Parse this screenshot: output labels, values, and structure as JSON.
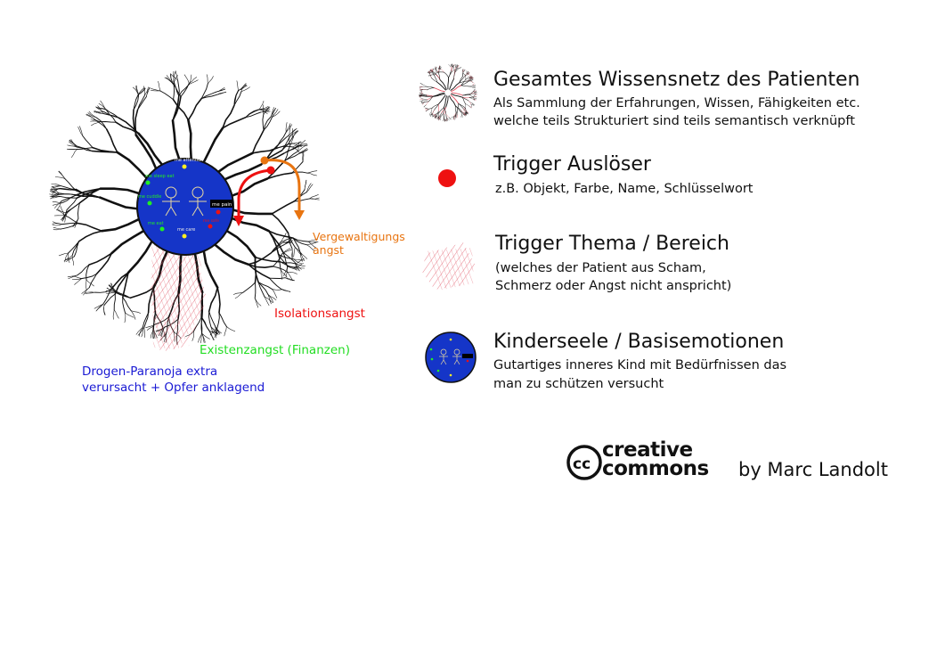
{
  "colors": {
    "kernel_fill": "#1535c8",
    "trigger_red": "#ee1111",
    "orange": "#e87410",
    "green_label": "#22dd22",
    "blue_label": "#1a1ad4",
    "hatch_red": "#e05060",
    "tree_line": "#111111"
  },
  "icons": {
    "knowledge_net": "knowledge-net-icon",
    "trigger_dot": "trigger-dot-icon",
    "topic_hatch": "topic-hatch-icon",
    "child_soul": "child-soul-icon",
    "cc_logo": "creative-commons-icon"
  },
  "kernel": {
    "labels": {
      "attention": "me attention",
      "sleep_eat": "me sleep eat",
      "cuddle": "me cuddle",
      "pain": "me pain",
      "eat": "me eat",
      "care": "me care",
      "hidden": "me safe"
    }
  },
  "annotations": {
    "vergewaltigung_line1": "Vergewaltigungs",
    "vergewaltigung_line2": "angst",
    "isolation": "Isolationsangst",
    "existenz": "Existenzangst (Finanzen)",
    "drogen_line1": "Drogen-Paranoja extra",
    "drogen_line2": "verursacht + Opfer anklagend"
  },
  "legend": [
    {
      "title": "Gesamtes Wissensnetz des Patienten",
      "desc1": "Als Sammlung der Erfahrungen, Wissen, Fähigkeiten etc.",
      "desc2": "welche teils Strukturiert sind teils semantisch verknüpft"
    },
    {
      "title": "Trigger Auslöser",
      "desc1": "z.B. Objekt, Farbe, Name, Schlüsselwort",
      "desc2": ""
    },
    {
      "title": "Trigger Thema / Bereich",
      "desc1": "(welches der Patient aus Scham,",
      "desc2": "Schmerz oder Angst nicht anspricht)"
    },
    {
      "title": "Kinderseele / Basisemotionen",
      "desc1": "Gutartiges inneres Kind mit Bedürfnissen das",
      "desc2": "man zu schützen versucht"
    }
  ],
  "credit": {
    "cc_line1": "creative",
    "cc_line2": "commons",
    "author": "by Marc Landolt"
  }
}
